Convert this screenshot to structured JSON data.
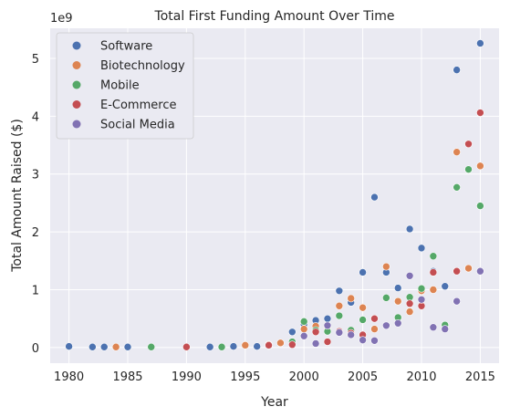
{
  "chart_data": {
    "type": "scatter",
    "title": "Total First Funding Amount Over Time",
    "xlabel": "Year",
    "ylabel": "Total Amount Raised ($)",
    "y_offset_text": "1e9",
    "xlim": [
      1978.4,
      2016.6
    ],
    "ylim": [
      -0.27,
      5.52
    ],
    "x_ticks": [
      1980,
      1985,
      1990,
      1995,
      2000,
      2005,
      2010,
      2015
    ],
    "y_ticks": [
      0,
      1,
      2,
      3,
      4,
      5
    ],
    "grid": true,
    "legend_position": "top-left",
    "series": [
      {
        "name": "Software",
        "color": "#4c72b0",
        "points": [
          [
            1980,
            0.02
          ],
          [
            1982,
            0.01
          ],
          [
            1983,
            0.01
          ],
          [
            1985,
            0.01
          ],
          [
            1992,
            0.01
          ],
          [
            1994,
            0.02
          ],
          [
            1996,
            0.02
          ],
          [
            1997,
            0.03
          ],
          [
            1999,
            0.27
          ],
          [
            2000,
            0.35
          ],
          [
            2000,
            0.4
          ],
          [
            2001,
            0.47
          ],
          [
            2002,
            0.5
          ],
          [
            2003,
            0.98
          ],
          [
            2004,
            0.78
          ],
          [
            2005,
            1.3
          ],
          [
            2006,
            2.6
          ],
          [
            2007,
            1.3
          ],
          [
            2008,
            1.03
          ],
          [
            2009,
            2.05
          ],
          [
            2010,
            1.72
          ],
          [
            2011,
            1.32
          ],
          [
            2012,
            1.06
          ],
          [
            2013,
            4.8
          ],
          [
            2015,
            5.26
          ]
        ]
      },
      {
        "name": "Biotechnology",
        "color": "#dd8452",
        "points": [
          [
            1984,
            0.01
          ],
          [
            1995,
            0.04
          ],
          [
            1997,
            0.05
          ],
          [
            1998,
            0.08
          ],
          [
            2000,
            0.32
          ],
          [
            2001,
            0.37
          ],
          [
            2002,
            0.36
          ],
          [
            2003,
            0.72
          ],
          [
            2004,
            0.85
          ],
          [
            2005,
            0.69
          ],
          [
            2006,
            0.32
          ],
          [
            2007,
            1.4
          ],
          [
            2008,
            0.8
          ],
          [
            2009,
            0.62
          ],
          [
            2010,
            0.98
          ],
          [
            2011,
            1.0
          ],
          [
            2013,
            3.38
          ],
          [
            2014,
            1.37
          ],
          [
            2015,
            3.14
          ]
        ]
      },
      {
        "name": "Mobile",
        "color": "#55a868",
        "points": [
          [
            1987,
            0.01
          ],
          [
            1993,
            0.01
          ],
          [
            1999,
            0.1
          ],
          [
            2000,
            0.45
          ],
          [
            2001,
            0.3
          ],
          [
            2002,
            0.28
          ],
          [
            2003,
            0.55
          ],
          [
            2004,
            0.3
          ],
          [
            2005,
            0.48
          ],
          [
            2007,
            0.86
          ],
          [
            2008,
            0.52
          ],
          [
            2009,
            0.87
          ],
          [
            2010,
            1.02
          ],
          [
            2011,
            1.58
          ],
          [
            2012,
            0.39
          ],
          [
            2013,
            2.77
          ],
          [
            2014,
            3.08
          ],
          [
            2015,
            2.45
          ]
        ]
      },
      {
        "name": "E-Commerce",
        "color": "#c44e52",
        "points": [
          [
            1990,
            0.01
          ],
          [
            1997,
            0.04
          ],
          [
            1999,
            0.05
          ],
          [
            2000,
            0.2
          ],
          [
            2001,
            0.27
          ],
          [
            2002,
            0.1
          ],
          [
            2003,
            0.28
          ],
          [
            2004,
            0.25
          ],
          [
            2005,
            0.22
          ],
          [
            2006,
            0.5
          ],
          [
            2009,
            0.76
          ],
          [
            2010,
            0.72
          ],
          [
            2011,
            1.3
          ],
          [
            2013,
            1.32
          ],
          [
            2014,
            3.52
          ],
          [
            2015,
            4.06
          ]
        ]
      },
      {
        "name": "Social Media",
        "color": "#8172b3",
        "points": [
          [
            2000,
            0.2
          ],
          [
            2001,
            0.07
          ],
          [
            2002,
            0.38
          ],
          [
            2003,
            0.26
          ],
          [
            2004,
            0.22
          ],
          [
            2005,
            0.13
          ],
          [
            2006,
            0.12
          ],
          [
            2007,
            0.38
          ],
          [
            2008,
            0.42
          ],
          [
            2009,
            1.24
          ],
          [
            2010,
            0.83
          ],
          [
            2011,
            0.35
          ],
          [
            2012,
            0.32
          ],
          [
            2013,
            0.8
          ],
          [
            2015,
            1.32
          ]
        ]
      }
    ]
  }
}
